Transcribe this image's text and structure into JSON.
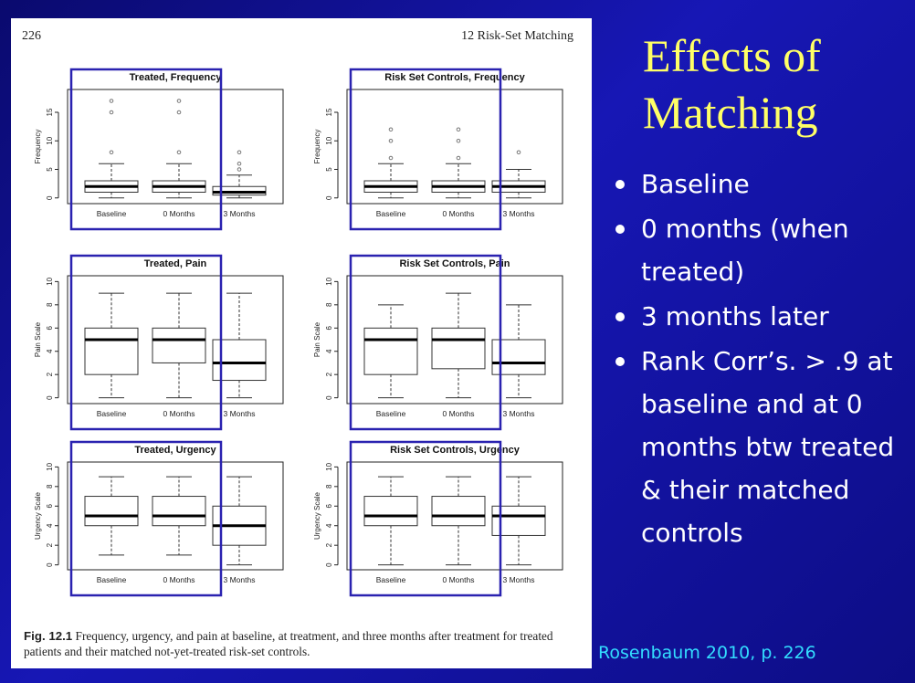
{
  "slide": {
    "title_line1": "Effects of",
    "title_line2": "Matching",
    "bullets": [
      "Baseline",
      "0 months (when treated)",
      "3 months later",
      "Rank Corr’s. > .9 at baseline and at 0 months btw treated & their matched controls"
    ],
    "citation": "Rosenbaum 2010, p. 226",
    "colors": {
      "background": "#1212a0",
      "title": "#ffff66",
      "citation": "#33ddff",
      "highlight_box": "#2a22b0"
    }
  },
  "page": {
    "number": "226",
    "running_head": "12  Risk-Set Matching",
    "caption_label": "Fig. 12.1",
    "caption_text": " Frequency, urgency, and pain at baseline, at treatment, and three months after treatment for treated patients and their matched not-yet-treated risk-set controls."
  },
  "chart_data": [
    {
      "type": "boxplot",
      "title": "Treated, Frequency",
      "ylabel": "Frequency",
      "categories": [
        "Baseline",
        "0 Months",
        "3 Months"
      ],
      "ylim": [
        -1,
        19
      ],
      "yticks": [
        0,
        5,
        10,
        15
      ],
      "boxes": [
        {
          "whisker_low": 0,
          "q1": 1,
          "median": 2,
          "q3": 3,
          "whisker_high": 6,
          "outliers": [
            8,
            15,
            17
          ]
        },
        {
          "whisker_low": 0,
          "q1": 1,
          "median": 2,
          "q3": 3,
          "whisker_high": 6,
          "outliers": [
            8,
            15,
            17
          ]
        },
        {
          "whisker_low": 0,
          "q1": 0.5,
          "median": 1,
          "q3": 2,
          "whisker_high": 4,
          "outliers": [
            5,
            6,
            8
          ]
        }
      ],
      "highlighted": [
        "Baseline",
        "0 Months"
      ]
    },
    {
      "type": "boxplot",
      "title": "Risk Set Controls, Frequency",
      "ylabel": "Frequency",
      "categories": [
        "Baseline",
        "0 Months",
        "3 Months"
      ],
      "ylim": [
        -1,
        19
      ],
      "yticks": [
        0,
        5,
        10,
        15
      ],
      "boxes": [
        {
          "whisker_low": 0,
          "q1": 1,
          "median": 2,
          "q3": 3,
          "whisker_high": 6,
          "outliers": [
            7,
            10,
            12
          ]
        },
        {
          "whisker_low": 0,
          "q1": 1,
          "median": 2,
          "q3": 3,
          "whisker_high": 6,
          "outliers": [
            7,
            10,
            12
          ]
        },
        {
          "whisker_low": 0,
          "q1": 1,
          "median": 2,
          "q3": 3,
          "whisker_high": 5,
          "outliers": [
            8
          ]
        }
      ],
      "highlighted": [
        "Baseline",
        "0 Months"
      ]
    },
    {
      "type": "boxplot",
      "title": "Treated, Pain",
      "ylabel": "Pain Scale",
      "categories": [
        "Baseline",
        "0 Months",
        "3 Months"
      ],
      "ylim": [
        -0.5,
        10.5
      ],
      "yticks": [
        0,
        2,
        4,
        6,
        8,
        10
      ],
      "boxes": [
        {
          "whisker_low": 0,
          "q1": 2,
          "median": 5,
          "q3": 6,
          "whisker_high": 9,
          "outliers": []
        },
        {
          "whisker_low": 0,
          "q1": 3,
          "median": 5,
          "q3": 6,
          "whisker_high": 9,
          "outliers": []
        },
        {
          "whisker_low": 0,
          "q1": 1.5,
          "median": 3,
          "q3": 5,
          "whisker_high": 9,
          "outliers": []
        }
      ],
      "highlighted": [
        "Baseline",
        "0 Months"
      ]
    },
    {
      "type": "boxplot",
      "title": "Risk Set Controls, Pain",
      "ylabel": "Pain Scale",
      "categories": [
        "Baseline",
        "0 Months",
        "3 Months"
      ],
      "ylim": [
        -0.5,
        10.5
      ],
      "yticks": [
        0,
        2,
        4,
        6,
        8,
        10
      ],
      "boxes": [
        {
          "whisker_low": 0,
          "q1": 2,
          "median": 5,
          "q3": 6,
          "whisker_high": 8,
          "outliers": []
        },
        {
          "whisker_low": 0,
          "q1": 2.5,
          "median": 5,
          "q3": 6,
          "whisker_high": 9,
          "outliers": []
        },
        {
          "whisker_low": 0,
          "q1": 2,
          "median": 3,
          "q3": 5,
          "whisker_high": 8,
          "outliers": []
        }
      ],
      "highlighted": [
        "Baseline",
        "0 Months"
      ]
    },
    {
      "type": "boxplot",
      "title": "Treated, Urgency",
      "ylabel": "Urgency Scale",
      "categories": [
        "Baseline",
        "0 Months",
        "3 Months"
      ],
      "ylim": [
        -0.5,
        10.5
      ],
      "yticks": [
        0,
        2,
        4,
        6,
        8,
        10
      ],
      "boxes": [
        {
          "whisker_low": 1,
          "q1": 4,
          "median": 5,
          "q3": 7,
          "whisker_high": 9,
          "outliers": []
        },
        {
          "whisker_low": 1,
          "q1": 4,
          "median": 5,
          "q3": 7,
          "whisker_high": 9,
          "outliers": []
        },
        {
          "whisker_low": 0,
          "q1": 2,
          "median": 4,
          "q3": 6,
          "whisker_high": 9,
          "outliers": []
        }
      ],
      "highlighted": [
        "Baseline",
        "0 Months"
      ]
    },
    {
      "type": "boxplot",
      "title": "Risk Set Controls, Urgency",
      "ylabel": "Urgency Scale",
      "categories": [
        "Baseline",
        "0 Months",
        "3 Months"
      ],
      "ylim": [
        -0.5,
        10.5
      ],
      "yticks": [
        0,
        2,
        4,
        6,
        8,
        10
      ],
      "boxes": [
        {
          "whisker_low": 0,
          "q1": 4,
          "median": 5,
          "q3": 7,
          "whisker_high": 9,
          "outliers": []
        },
        {
          "whisker_low": 0,
          "q1": 4,
          "median": 5,
          "q3": 7,
          "whisker_high": 9,
          "outliers": []
        },
        {
          "whisker_low": 0,
          "q1": 3,
          "median": 5,
          "q3": 6,
          "whisker_high": 9,
          "outliers": []
        }
      ],
      "highlighted": [
        "Baseline",
        "0 Months"
      ]
    }
  ]
}
